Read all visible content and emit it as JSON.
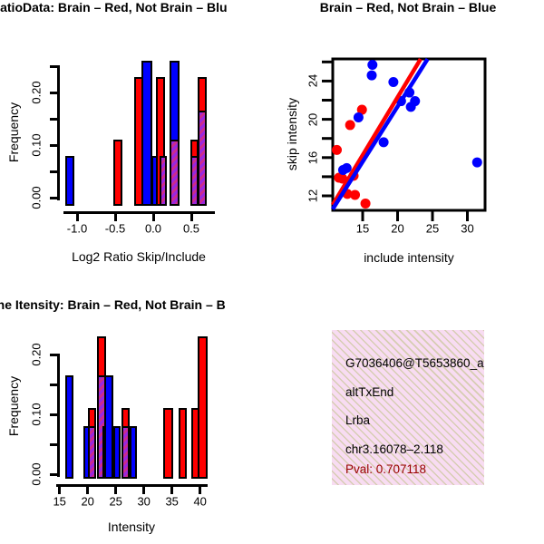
{
  "colors": {
    "red": "#ff0000",
    "blue": "#0000ff",
    "purple_base": "#9b27dd",
    "purple_stripe": "#cc2a8f",
    "pink_bg": "#f8dcf2",
    "pink_dot": "#d6cdb2",
    "pval_red": "#990000",
    "axis": "#000000"
  },
  "info_box": {
    "lines": [
      {
        "text": "G7036406@T5653860_a",
        "color": "black"
      },
      {
        "text": "altTxEnd",
        "color": "black"
      },
      {
        "text": "Lrba",
        "color": "black"
      },
      {
        "text": "chr3.16078–2.118",
        "color": "black"
      },
      {
        "text": "Pval: 0.707118",
        "color": "pval_red"
      }
    ]
  },
  "chart_data": [
    {
      "type": "bar",
      "title": "RatioData: Brain – Red, Not Brain – Blu",
      "xlabel": "Log2 Ratio Skip/Include",
      "ylabel": "Frequency",
      "xlim": [
        -1.25,
        0.8
      ],
      "ylim": [
        0,
        0.27
      ],
      "xticks": [
        -1.0,
        -0.5,
        0.0,
        0.5
      ],
      "xtick_labels": [
        "-1.0",
        "-0.5",
        "0.0",
        "0.5"
      ],
      "ytick_vals": [
        0,
        0.05,
        0.1,
        0.15,
        0.2,
        0.25
      ],
      "ytick_labels": [
        "0.00",
        "",
        "0.10",
        "",
        "0.20",
        ""
      ],
      "legend": {
        "Brain": "red",
        "Not Brain": "blue",
        "overlap": "purple"
      },
      "bars": [
        {
          "x0": -1.16,
          "x1": -1.04,
          "segments": [
            {
              "color": "blue",
              "top": 0.08
            }
          ]
        },
        {
          "x0": -0.52,
          "x1": -0.4,
          "segments": [
            {
              "color": "red",
              "top": 0.11
            }
          ]
        },
        {
          "x0": -0.25,
          "x1": -0.13,
          "segments": [
            {
              "color": "red",
              "top": 0.23
            }
          ]
        },
        {
          "x0": -0.15,
          "x1": -0.01,
          "segments": [
            {
              "color": "blue",
              "top": 0.26
            }
          ]
        },
        {
          "x0": -0.02,
          "x1": 0.08,
          "segments": [
            {
              "color": "blue",
              "top": 0.08
            }
          ]
        },
        {
          "x0": 0.04,
          "x1": 0.16,
          "segments": [
            {
              "color": "red",
              "top": 0.23
            }
          ]
        },
        {
          "x0": 0.08,
          "x1": 0.18,
          "segments": [
            {
              "color": "purple",
              "top": 0.08
            }
          ]
        },
        {
          "x0": 0.22,
          "x1": 0.34,
          "segments": [
            {
              "color": "purple",
              "top": 0.11
            },
            {
              "color": "blue",
              "top": 0.26
            }
          ]
        },
        {
          "x0": 0.49,
          "x1": 0.59,
          "segments": [
            {
              "color": "purple",
              "top": 0.08
            },
            {
              "color": "red",
              "top": 0.11
            }
          ]
        },
        {
          "x0": 0.58,
          "x1": 0.7,
          "segments": [
            {
              "color": "purple",
              "top": 0.165
            },
            {
              "color": "red",
              "top": 0.23
            }
          ]
        }
      ]
    },
    {
      "type": "scatter",
      "title": "Brain – Red, Not Brain – Blue",
      "xlabel": "include intensity",
      "ylabel": "skip intensity",
      "xlim": [
        10.7,
        32.5
      ],
      "ylim": [
        10.8,
        27.8
      ],
      "xticks": [
        15,
        20,
        25,
        30
      ],
      "xtick_labels": [
        "15",
        "20",
        "25",
        "30"
      ],
      "ytick_major": [
        12,
        16,
        20,
        24
      ],
      "ytick_major_labels": [
        "12",
        "16",
        "20",
        "24"
      ],
      "ytick_minor": [
        14,
        18,
        22,
        26
      ],
      "series": [
        {
          "name": "Brain",
          "color": "red",
          "points": [
            [
              14.9,
              21.0
            ],
            [
              13.2,
              19.4
            ],
            [
              11.3,
              16.8
            ],
            [
              11.6,
              13.9
            ],
            [
              12.1,
              13.8
            ],
            [
              13.7,
              14.1
            ],
            [
              12.8,
              12.2
            ],
            [
              13.9,
              12.1
            ],
            [
              15.4,
              11.2
            ]
          ]
        },
        {
          "name": "Not Brain",
          "color": "blue",
          "points": [
            [
              16.4,
              25.7
            ],
            [
              16.3,
              24.6
            ],
            [
              19.4,
              23.9
            ],
            [
              21.7,
              22.8
            ],
            [
              20.5,
              21.9
            ],
            [
              22.5,
              21.9
            ],
            [
              21.9,
              21.3
            ],
            [
              14.4,
              20.2
            ],
            [
              18.0,
              17.6
            ],
            [
              31.4,
              15.5
            ],
            [
              12.2,
              14.7
            ],
            [
              12.7,
              14.9
            ]
          ]
        }
      ],
      "fit_lines": [
        {
          "color": "red",
          "x": [
            10.7,
            23.3
          ],
          "y": [
            11.05,
            26.3
          ]
        },
        {
          "color": "blue",
          "x": [
            10.7,
            24.3
          ],
          "y": [
            10.6,
            26.3
          ]
        }
      ]
    },
    {
      "type": "bar",
      "title": "Gene Itensity: Brain – Red, Not Brain – B",
      "xlabel": "Intensity",
      "ylabel": "Frequency",
      "xlim": [
        14.5,
        42
      ],
      "ylim": [
        0,
        0.24
      ],
      "xticks": [
        15,
        20,
        25,
        30,
        35,
        40
      ],
      "xtick_labels": [
        "15",
        "20",
        "25",
        "30",
        "35",
        "40"
      ],
      "ytick_vals": [
        0,
        0.05,
        0.1,
        0.15,
        0.2
      ],
      "ytick_labels": [
        "0.00",
        "",
        "0.10",
        "",
        "0.20"
      ],
      "legend": {
        "Brain": "red",
        "Not Brain": "blue",
        "overlap": "purple"
      },
      "bars": [
        {
          "x0": 16.0,
          "x1": 17.45,
          "segments": [
            {
              "color": "blue",
              "top": 0.165
            }
          ]
        },
        {
          "x0": 19.2,
          "x1": 20.65,
          "segments": [
            {
              "color": "blue",
              "top": 0.08
            }
          ]
        },
        {
          "x0": 20.1,
          "x1": 21.5,
          "segments": [
            {
              "color": "purple",
              "top": 0.08
            },
            {
              "color": "red",
              "top": 0.11
            }
          ]
        },
        {
          "x0": 21.6,
          "x1": 23.2,
          "segments": [
            {
              "color": "purple",
              "top": 0.165
            },
            {
              "color": "red",
              "top": 0.23
            }
          ]
        },
        {
          "x0": 22.55,
          "x1": 23.35,
          "segments": [
            {
              "color": "blue",
              "top": 0.08
            }
          ]
        },
        {
          "x0": 23.0,
          "x1": 24.55,
          "segments": [
            {
              "color": "blue",
              "top": 0.165
            }
          ]
        },
        {
          "x0": 24.5,
          "x1": 25.9,
          "segments": [
            {
              "color": "blue",
              "top": 0.08
            }
          ]
        },
        {
          "x0": 25.95,
          "x1": 27.4,
          "segments": [
            {
              "color": "purple",
              "top": 0.08
            },
            {
              "color": "red",
              "top": 0.11
            }
          ]
        },
        {
          "x0": 27.4,
          "x1": 28.8,
          "segments": [
            {
              "color": "blue",
              "top": 0.08
            }
          ]
        },
        {
          "x0": 33.4,
          "x1": 35.15,
          "segments": [
            {
              "color": "red",
              "top": 0.11
            }
          ]
        },
        {
          "x0": 36.1,
          "x1": 37.7,
          "segments": [
            {
              "color": "red",
              "top": 0.11
            }
          ]
        },
        {
          "x0": 38.4,
          "x1": 40.1,
          "segments": [
            {
              "color": "red",
              "top": 0.11
            }
          ]
        },
        {
          "x0": 39.5,
          "x1": 41.3,
          "segments": [
            {
              "color": "red",
              "top": 0.23
            }
          ]
        }
      ]
    }
  ]
}
